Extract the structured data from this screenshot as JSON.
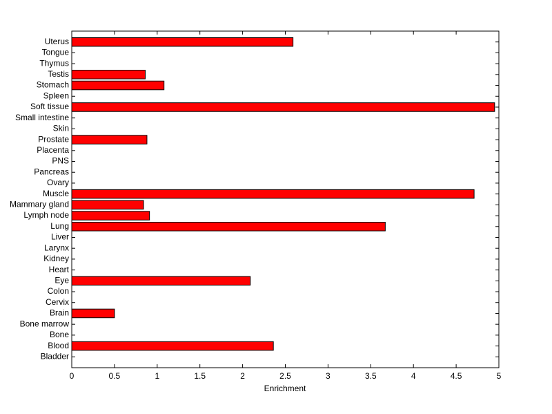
{
  "chart_data": {
    "type": "barh",
    "xlabel": "Enrichment",
    "categories": [
      "Bladder",
      "Blood",
      "Bone",
      "Bone marrow",
      "Brain",
      "Cervix",
      "Colon",
      "Eye",
      "Heart",
      "Kidney",
      "Larynx",
      "Liver",
      "Lung",
      "Lymph node",
      "Mammary gland",
      "Muscle",
      "Ovary",
      "Pancreas",
      "PNS",
      "Placenta",
      "Prostate",
      "Skin",
      "Small intestine",
      "Soft tissue",
      "Spleen",
      "Stomach",
      "Testis",
      "Thymus",
      "Tongue",
      "Uterus"
    ],
    "values": [
      0,
      2.36,
      0,
      0,
      0.5,
      0,
      0,
      2.09,
      0,
      0,
      0,
      0,
      3.67,
      0.91,
      0.84,
      4.71,
      0,
      0,
      0,
      0,
      0.88,
      0,
      0,
      4.95,
      0,
      1.08,
      0.86,
      0,
      0,
      2.59
    ],
    "color": "#ff0000",
    "xlim": [
      0,
      5
    ],
    "xticks": [
      0,
      0.5,
      1,
      1.5,
      2,
      2.5,
      3,
      3.5,
      4,
      4.5,
      5
    ]
  }
}
